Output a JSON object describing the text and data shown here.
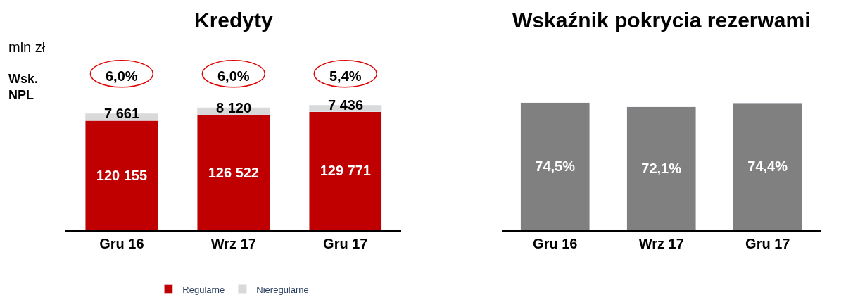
{
  "chart_data": [
    {
      "type": "bar",
      "title": "Kredyty",
      "stacked": true,
      "categories": [
        "Gru 16",
        "Wrz 17",
        "Gru 17"
      ],
      "series": [
        {
          "name": "Regularne",
          "color": "#c00000",
          "values": [
            120155,
            126522,
            129771
          ],
          "value_labels": [
            "120 155",
            "126 522",
            "129 771"
          ]
        },
        {
          "name": "Nieregularne",
          "color": "#d9d9d9",
          "values": [
            7661,
            8120,
            7436
          ],
          "value_labels": [
            "7 661",
            "8 120",
            "7 436"
          ]
        }
      ],
      "annotations": [
        "mln zł",
        "Wsk.\nNPL",
        "6,0%",
        "6,0%",
        "5,4%"
      ],
      "legend": "bottom"
    },
    {
      "type": "bar",
      "title": "Wskaźnik pokrycia rezerwami",
      "categories": [
        "Gru 16",
        "Wrz 17",
        "Gru 17"
      ],
      "series": [
        {
          "color": "#808080",
          "values": [
            74.5,
            72.1,
            74.4
          ],
          "value_labels": [
            "74,5%",
            "72,1%",
            "74,4%"
          ]
        }
      ],
      "legend": false
    }
  ]
}
